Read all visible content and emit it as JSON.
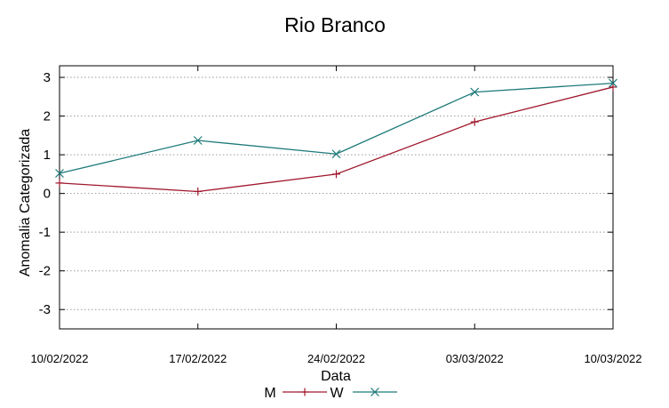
{
  "chart_data": {
    "type": "line",
    "title": "Rio Branco",
    "xlabel": "Data",
    "ylabel": "Anomalia Categorizada",
    "categories": [
      "10/02/2022",
      "17/02/2022",
      "24/02/2022",
      "03/03/2022",
      "10/03/2022"
    ],
    "ylim": [
      -3.5,
      3.3
    ],
    "yticks": [
      "-3",
      "-2",
      "-1",
      "0",
      "1",
      "2",
      "3"
    ],
    "grid": true,
    "legend_position": "bottom-center",
    "series": [
      {
        "name": "M",
        "color": "#a0182d",
        "marker": "plus",
        "values": [
          0.27,
          0.05,
          0.5,
          1.85,
          2.75
        ]
      },
      {
        "name": "W",
        "color": "#1f7a7a",
        "marker": "cross",
        "values": [
          0.52,
          1.37,
          1.02,
          2.62,
          2.85
        ]
      }
    ]
  }
}
